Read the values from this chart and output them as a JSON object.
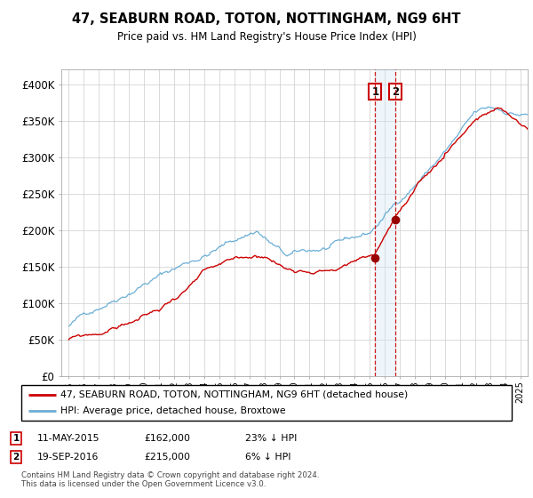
{
  "title": "47, SEABURN ROAD, TOTON, NOTTINGHAM, NG9 6HT",
  "subtitle": "Price paid vs. HM Land Registry's House Price Index (HPI)",
  "legend_line1": "47, SEABURN ROAD, TOTON, NOTTINGHAM, NG9 6HT (detached house)",
  "legend_line2": "HPI: Average price, detached house, Broxtowe",
  "footer1": "Contains HM Land Registry data © Crown copyright and database right 2024.",
  "footer2": "This data is licensed under the Open Government Licence v3.0.",
  "sale1_date": "11-MAY-2015",
  "sale1_price": "£162,000",
  "sale1_hpi": "23% ↓ HPI",
  "sale2_date": "19-SEP-2016",
  "sale2_price": "£215,000",
  "sale2_hpi": "6% ↓ HPI",
  "sale1_x": 2015.36,
  "sale1_y": 162000,
  "sale2_x": 2016.72,
  "sale2_y": 215000,
  "hpi_color": "#6baed6",
  "price_color": "#cc0000",
  "sale_marker_color": "#990000",
  "dashed_line_color": "#cc0000",
  "shade_color": "#d0e8f5",
  "background_color": "#ffffff",
  "grid_color": "#cccccc",
  "ylim": [
    0,
    420000
  ],
  "xlim": [
    1994.5,
    2025.5
  ]
}
